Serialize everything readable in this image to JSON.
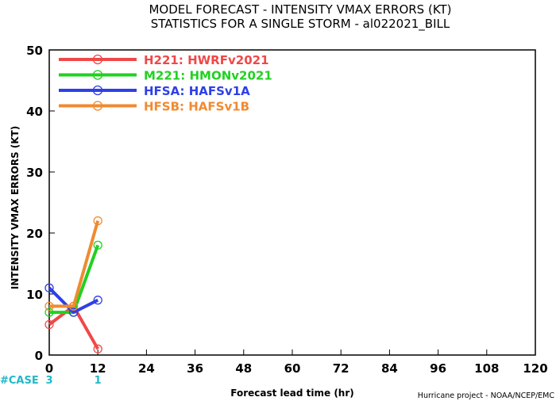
{
  "chart_data": {
    "type": "line",
    "title": "MODEL FORECAST - INTENSITY VMAX ERRORS (KT)",
    "subtitle": "STATISTICS FOR A SINGLE STORM - al022021_BILL",
    "xlabel": "Forecast lead time (hr)",
    "ylabel": "INTENSITY VMAX ERRORS (KT)",
    "xlim": [
      0,
      120
    ],
    "ylim": [
      0,
      50
    ],
    "x_ticks": [
      0,
      12,
      24,
      36,
      48,
      60,
      72,
      84,
      96,
      108,
      120
    ],
    "y_ticks": [
      0,
      10,
      20,
      30,
      40,
      50
    ],
    "grid": false,
    "legend_position": "top-left",
    "series": [
      {
        "name": "H221:  HWRFv2021",
        "color": "#f04848",
        "x": [
          0,
          6,
          12
        ],
        "y": [
          5,
          8,
          1
        ]
      },
      {
        "name": "M221:  HMONv2021",
        "color": "#22d022",
        "x": [
          0,
          6,
          12
        ],
        "y": [
          7,
          7,
          18
        ]
      },
      {
        "name": "HFSA:  HAFSv1A",
        "color": "#2e3fe8",
        "x": [
          0,
          6,
          12
        ],
        "y": [
          11,
          7,
          9
        ]
      },
      {
        "name": "HFSB:  HAFSv1B",
        "color": "#f08a30",
        "x": [
          0,
          6,
          12
        ],
        "y": [
          8,
          8,
          22
        ]
      }
    ],
    "cases": {
      "label": "#CASE",
      "x": [
        0,
        12
      ],
      "counts": [
        "3",
        "1"
      ]
    }
  },
  "footer": {
    "credit": "Hurricane project - NOAA/NCEP/EMC"
  }
}
